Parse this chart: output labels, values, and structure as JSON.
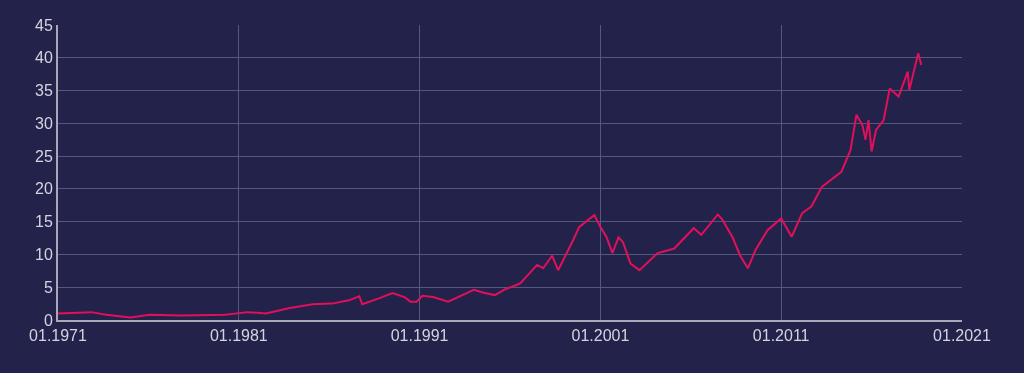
{
  "chart_data": {
    "type": "line",
    "x": [
      "1971-01",
      "1972-11",
      "1973-09",
      "1975-01",
      "1976-02",
      "1977-11",
      "1980-04",
      "1981-07",
      "1982-07",
      "1983-10",
      "1985-02",
      "1986-03",
      "1987-02",
      "1987-09",
      "1987-11",
      "1988-10",
      "1989-07",
      "1990-03",
      "1990-07",
      "1990-11",
      "1991-03",
      "1991-10",
      "1992-08",
      "1994-01",
      "1994-07",
      "1995-03",
      "1995-10",
      "1996-05",
      "1996-08",
      "1997-07",
      "1997-11",
      "1998-05",
      "1998-09",
      "1999-07",
      "1999-11",
      "2000-09",
      "2001-01",
      "2001-05",
      "2001-09",
      "2002-01",
      "2002-04",
      "2002-09",
      "2003-03",
      "2004-03",
      "2005-02",
      "2006-03",
      "2006-08",
      "2007-07",
      "2007-10",
      "2008-05",
      "2008-10",
      "2009-03",
      "2009-08",
      "2010-04",
      "2011-01",
      "2011-08",
      "2012-03",
      "2012-09",
      "2013-04",
      "2014-05",
      "2014-11",
      "2015-03",
      "2015-07",
      "2015-09",
      "2015-11",
      "2016-01",
      "2016-04",
      "2016-09",
      "2017-01",
      "2017-07",
      "2018-01",
      "2018-02",
      "2018-08",
      "2018-10"
    ],
    "series": [
      {
        "color": "#e0105a",
        "values": [
          1.0,
          1.2,
          0.8,
          0.4,
          0.8,
          0.7,
          0.8,
          1.2,
          1.0,
          1.8,
          2.4,
          2.5,
          3.0,
          3.6,
          2.4,
          3.3,
          4.1,
          3.5,
          2.8,
          2.8,
          3.7,
          3.5,
          2.8,
          4.6,
          4.2,
          3.8,
          4.7,
          5.3,
          5.6,
          8.4,
          7.9,
          9.8,
          7.6,
          12.2,
          14.2,
          16.0,
          14.2,
          12.7,
          10.2,
          12.6,
          11.9,
          8.6,
          7.6,
          10.2,
          10.9,
          14.0,
          13.0,
          16.1,
          15.3,
          12.5,
          9.7,
          7.9,
          10.7,
          13.7,
          15.5,
          12.7,
          16.3,
          17.3,
          20.3,
          22.6,
          25.9,
          31.3,
          29.7,
          27.5,
          30.5,
          25.7,
          29.0,
          30.5,
          35.3,
          34.1,
          37.9,
          35.1,
          40.7,
          38.9
        ]
      }
    ],
    "xlim": [
      "1971-01",
      "2021-01"
    ],
    "xticks": [
      {
        "value": "1971-01",
        "label": "01.1971"
      },
      {
        "value": "1981-01",
        "label": "01.1981"
      },
      {
        "value": "1991-01",
        "label": "01.1991"
      },
      {
        "value": "2001-01",
        "label": "01.2001"
      },
      {
        "value": "2011-01",
        "label": "01.2011"
      },
      {
        "value": "2021-01",
        "label": "01.2021"
      }
    ],
    "ylim": [
      0,
      45
    ],
    "yticks": [
      0,
      5,
      10,
      15,
      20,
      25,
      30,
      35,
      40,
      45
    ],
    "grid": true,
    "marker": "none",
    "line_style": "solid"
  }
}
